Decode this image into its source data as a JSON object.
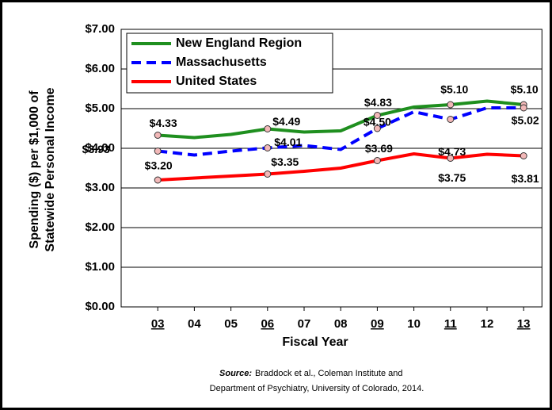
{
  "chart_data": {
    "type": "line",
    "y_label": [
      "Spending ($) per $1,000 of",
      "Statewide Personal Income"
    ],
    "x_label": "Fiscal Year",
    "categories": [
      "03",
      "04",
      "05",
      "06",
      "07",
      "08",
      "09",
      "10",
      "11",
      "12",
      "13"
    ],
    "underline": [
      true,
      false,
      false,
      true,
      false,
      false,
      true,
      false,
      true,
      false,
      true
    ],
    "series": [
      {
        "name": "New England Region",
        "color": "#1f8f1f",
        "dashed": false,
        "values": [
          4.33,
          4.27,
          4.35,
          4.49,
          4.41,
          4.44,
          4.83,
          5.04,
          5.1,
          5.19,
          5.1
        ],
        "value_labels": [
          "$4.33",
          null,
          null,
          "$4.49",
          null,
          null,
          "$4.83",
          null,
          "$5.10",
          null,
          "$5.10"
        ]
      },
      {
        "name": "Massachusetts",
        "color": "#0000ff",
        "dashed": true,
        "values": [
          3.93,
          3.83,
          3.93,
          4.01,
          4.07,
          3.97,
          4.5,
          4.92,
          4.73,
          5.02,
          5.02
        ],
        "value_labels": [
          "$3.93",
          null,
          null,
          "$4.01",
          null,
          null,
          "$4.50",
          null,
          "$4.73",
          null,
          "$5.02"
        ]
      },
      {
        "name": "United States",
        "color": "#ff0000",
        "dashed": false,
        "values": [
          3.2,
          3.25,
          3.3,
          3.35,
          3.42,
          3.5,
          3.69,
          3.86,
          3.75,
          3.85,
          3.81
        ],
        "value_labels": [
          "$3.20",
          null,
          null,
          "$3.35",
          null,
          null,
          "$3.69",
          null,
          "$3.75",
          null,
          "$3.81"
        ]
      }
    ],
    "ylim": [
      0,
      7
    ],
    "yticks": [
      {
        "value": 0,
        "label": "$0.00"
      },
      {
        "value": 1,
        "label": "$1.00"
      },
      {
        "value": 2,
        "label": "$2.00"
      },
      {
        "value": 3,
        "label": "$3.00"
      },
      {
        "value": 4,
        "label": "$4.00"
      },
      {
        "value": 5,
        "label": "$5.00"
      },
      {
        "value": 6,
        "label": "$6.00"
      },
      {
        "value": 7,
        "label": "$7.00"
      }
    ],
    "grid": true,
    "legend": "upper left",
    "source": {
      "label": "Source:",
      "lines": [
        "Braddock et al., Coleman Institute and",
        "Department of Psychiatry, University of Colorado, 2014."
      ]
    }
  }
}
